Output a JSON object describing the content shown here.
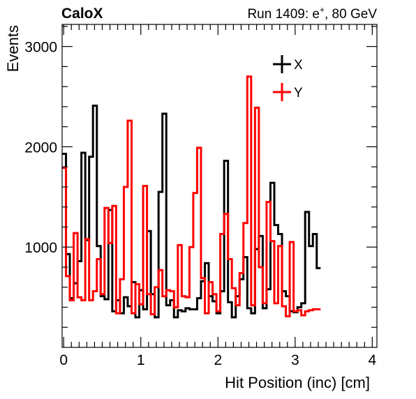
{
  "header": {
    "left_label": "CaloX",
    "right_label_prefix": "Run 1409: e",
    "right_label_sup": "+",
    "right_label_suffix": ", 80 GeV"
  },
  "chart_data": {
    "type": "histogram",
    "title": "",
    "xlabel": "Hit Position (inc) [cm]",
    "ylabel": "Events",
    "xlim": [
      -0.02,
      4.06
    ],
    "ylim": [
      0,
      3220
    ],
    "bin_width": 0.05,
    "x_start": -0.02,
    "grid": false,
    "legend_position": "top-right",
    "x_ticks": [
      0,
      1,
      2,
      3,
      4
    ],
    "y_ticks": [
      1000,
      2000,
      3000
    ],
    "series": [
      {
        "name": "X",
        "color": "#000000",
        "values": [
          1930,
          930,
          490,
          640,
          860,
          1940,
          1070,
          1900,
          2410,
          1010,
          510,
          480,
          1370,
          360,
          470,
          340,
          500,
          410,
          650,
          300,
          570,
          380,
          1160,
          530,
          300,
          1550,
          2330,
          420,
          470,
          300,
          370,
          360,
          390,
          380,
          380,
          490,
          660,
          840,
          510,
          460,
          340,
          560,
          1860,
          450,
          300,
          510,
          680,
          900,
          390,
          340,
          980,
          1110,
          390,
          580,
          1640,
          1220,
          1130,
          560,
          510,
          360,
          350,
          400,
          440,
          1350,
          1010,
          1130,
          790
        ]
      },
      {
        "name": "Y",
        "color": "#ff0000",
        "values": [
          1790,
          710,
          470,
          1140,
          500,
          470,
          1080,
          470,
          560,
          880,
          530,
          1390,
          1040,
          1410,
          340,
          680,
          1600,
          2260,
          340,
          630,
          430,
          1610,
          530,
          330,
          600,
          770,
          510,
          570,
          560,
          400,
          1020,
          510,
          500,
          1000,
          1540,
          1990,
          690,
          340,
          650,
          530,
          360,
          1130,
          1330,
          880,
          590,
          420,
          740,
          1240,
          2700,
          420,
          2390,
          800,
          440,
          1450,
          1060,
          440,
          1010,
          410,
          310,
          1050,
          360,
          370,
          320,
          360,
          370,
          380,
          380
        ]
      }
    ]
  }
}
